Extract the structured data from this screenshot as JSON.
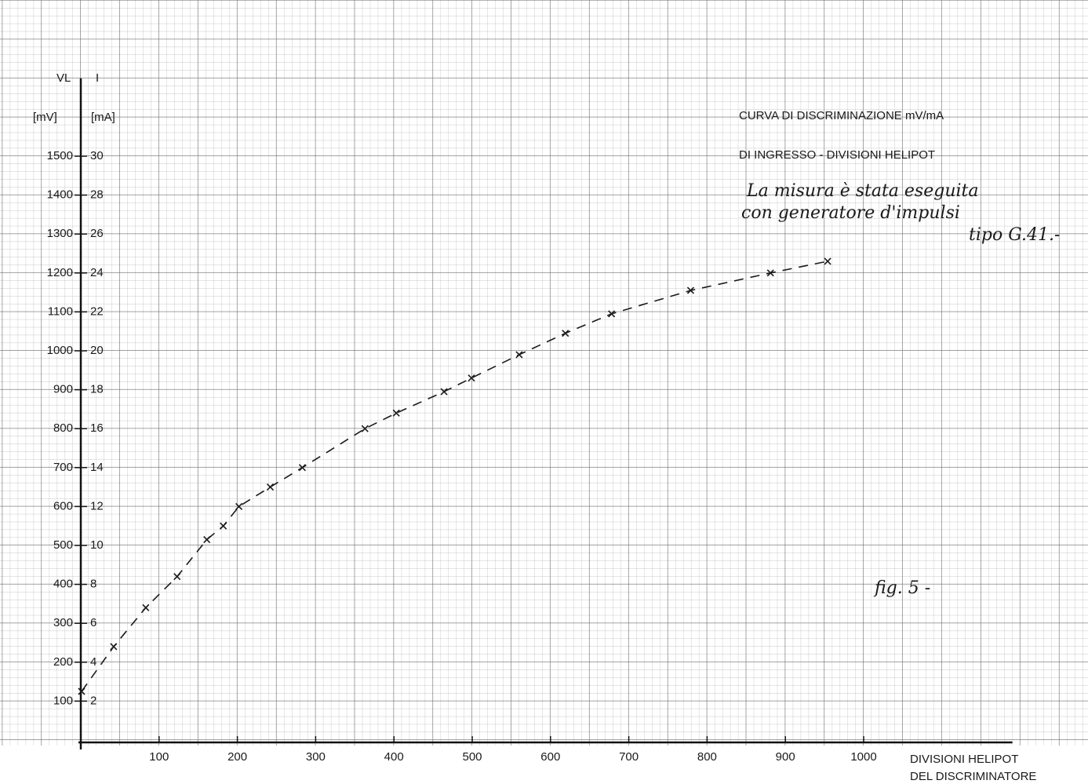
{
  "chart_data": {
    "type": "line",
    "y_label": "I",
    "y_unit": "[mA]",
    "y2_label": "VL",
    "y2_unit": "[mV]",
    "x_label": [
      "DIVISIONI HELIPOT",
      "DEL DISCRIMINATORE"
    ],
    "annotations": [
      "CURVA DI DISCRIMINAZIONE mV/mA",
      "DI INGRESSO - DIVISIONI HELIPOT",
      "La misura è stata eseguita",
      "con generatore d'impulsi",
      "tipo G.41.-",
      "fig. 5 -"
    ],
    "x": [
      1,
      42,
      83,
      123,
      161,
      182,
      202,
      242,
      283,
      363,
      403,
      464,
      499,
      560,
      619,
      678,
      779,
      881,
      954
    ],
    "values": [
      2.5,
      4.8,
      6.8,
      8.4,
      10.3,
      11,
      12,
      13,
      14,
      16,
      16.8,
      17.9,
      18.6,
      19.8,
      20.9,
      21.9,
      23.1,
      24,
      24.6
    ],
    "color": "#1a1a1a",
    "xlim": [
      0,
      1190
    ],
    "xticks": [
      100,
      200,
      300,
      400,
      500,
      600,
      700,
      800,
      900,
      1000
    ],
    "ylim": [
      0,
      34
    ],
    "yticks": [
      2,
      4,
      6,
      8,
      10,
      12,
      14,
      16,
      18,
      20,
      22,
      24,
      26,
      28,
      30
    ],
    "y2lim": [
      0,
      1700
    ],
    "y2ticks": [
      100,
      200,
      300,
      400,
      500,
      600,
      700,
      800,
      900,
      1000,
      1100,
      1200,
      1300,
      1400,
      1500
    ]
  }
}
